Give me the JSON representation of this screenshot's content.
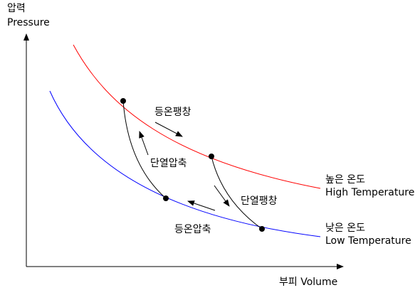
{
  "axes": {
    "y_label": [
      "압력",
      "Pressure"
    ],
    "x_label": "부피 Volume"
  },
  "curves": {
    "high": [
      "높은 온도",
      "High Temperature"
    ],
    "low": [
      "낮은 온도",
      "Low Temperature"
    ]
  },
  "processes": {
    "isothermal_expansion": "등온팽창",
    "adiabatic_expansion": "단열팽창",
    "isothermal_compression": "등온압축",
    "adiabatic_compression": "단열압축"
  }
}
